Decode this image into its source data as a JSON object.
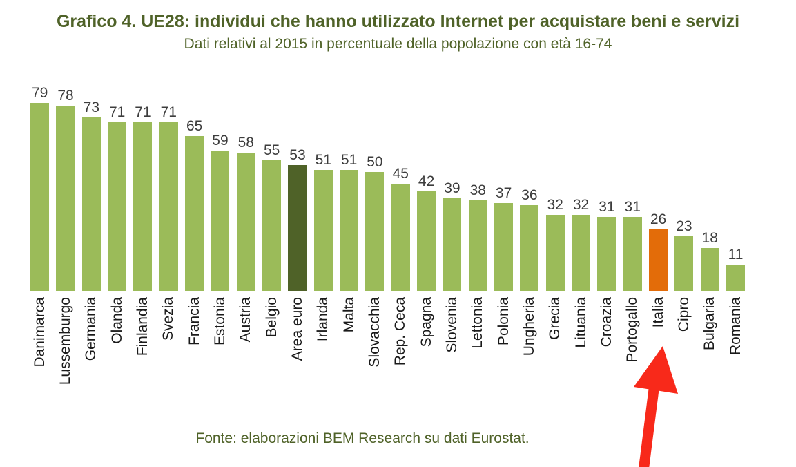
{
  "chart_data": {
    "type": "bar",
    "title": "Grafico 4. UE28: individui che hanno utilizzato Internet per acquistare beni e servizi",
    "subtitle": "Dati relativi al 2015 in percentuale della popolazione con età 16-74",
    "source": "Fonte: elaborazioni BEM Research su dati Eurostat.",
    "categories": [
      "Danimarca",
      "Lussemburgo",
      "Germania",
      "Olanda",
      "Finlandia",
      "Svezia",
      "Francia",
      "Estonia",
      "Austria",
      "Belgio",
      "Area euro",
      "Irlanda",
      "Malta",
      "Slovacchia",
      "Rep. Ceca",
      "Spagna",
      "Slovenia",
      "Lettonia",
      "Polonia",
      "Ungheria",
      "Grecia",
      "Lituania",
      "Croazia",
      "Portogallo",
      "Italia",
      "Cipro",
      "Bulgaria",
      "Romania"
    ],
    "values": [
      79,
      78,
      73,
      71,
      71,
      71,
      65,
      59,
      58,
      55,
      53,
      51,
      51,
      50,
      45,
      42,
      39,
      38,
      37,
      36,
      32,
      32,
      31,
      31,
      26,
      23,
      18,
      11
    ],
    "bar_color": "#9BBB59",
    "highlight_bars": {
      "Area euro": "#4F6228",
      "Italia": "#E36C09"
    },
    "value_labels_shown": true,
    "ylim": [
      0,
      100
    ],
    "grid": false,
    "legend": "none",
    "annotation": {
      "type": "arrow",
      "target": "Italia",
      "color": "#F8291A",
      "description": "red arrow pointing up at the Italia axis label"
    }
  }
}
